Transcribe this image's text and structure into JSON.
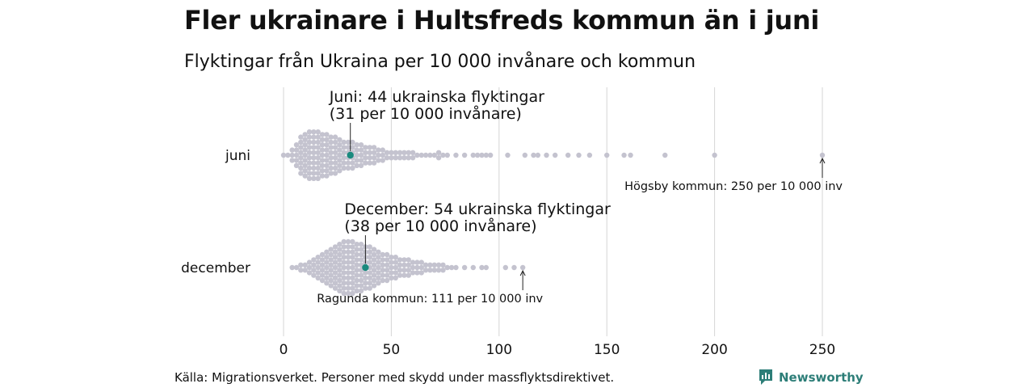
{
  "header": {
    "title": "Fler ukrainare i Hultsfreds kommun än i juni",
    "subtitle": "Flyktingar från Ukraina per 10 000 invånare och kommun"
  },
  "footer": {
    "source": "Källa: Migrationsverket. Personer med skydd under massflyktsdirektivet.",
    "brand": "Newsworthy"
  },
  "colors": {
    "dot": "#c4c3cf",
    "highlight": "#1a8a7e",
    "grid": "#d6d6d6",
    "text": "#111111"
  },
  "chart_data": {
    "type": "scatter",
    "subtype": "beeswarm",
    "xlim": [
      0,
      250
    ],
    "xticks": [
      0,
      50,
      100,
      150,
      200,
      250
    ],
    "xlabel": "",
    "ylabel": "",
    "grid": true,
    "rows": [
      {
        "label": "juni",
        "highlight": {
          "value": 31,
          "line1": "Juni: 44 ukrainska flyktingar",
          "line2": "(31 per 10 000 invånare)"
        },
        "outlier": {
          "value": 250,
          "label": "Högsby kommun: 250 per 10 000 inv"
        },
        "bins": [
          [
            0,
            1
          ],
          [
            2,
            1
          ],
          [
            4,
            3
          ],
          [
            6,
            5
          ],
          [
            8,
            8
          ],
          [
            10,
            9
          ],
          [
            12,
            10
          ],
          [
            14,
            10
          ],
          [
            16,
            10
          ],
          [
            18,
            9
          ],
          [
            20,
            9
          ],
          [
            22,
            8
          ],
          [
            24,
            8
          ],
          [
            26,
            7
          ],
          [
            28,
            6
          ],
          [
            30,
            6
          ],
          [
            32,
            6
          ],
          [
            34,
            5
          ],
          [
            36,
            5
          ],
          [
            38,
            4
          ],
          [
            40,
            4
          ],
          [
            42,
            4
          ],
          [
            44,
            3
          ],
          [
            46,
            3
          ],
          [
            48,
            2
          ],
          [
            50,
            2
          ],
          [
            52,
            2
          ],
          [
            54,
            2
          ],
          [
            56,
            2
          ],
          [
            58,
            2
          ],
          [
            60,
            2
          ],
          [
            62,
            1
          ],
          [
            64,
            1
          ],
          [
            66,
            1
          ],
          [
            68,
            1
          ],
          [
            70,
            1
          ],
          [
            72,
            2
          ],
          [
            74,
            1
          ],
          [
            76,
            1
          ],
          [
            80,
            1
          ],
          [
            84,
            1
          ],
          [
            88,
            1
          ],
          [
            90,
            1
          ],
          [
            92,
            1
          ],
          [
            94,
            1
          ],
          [
            96,
            1
          ],
          [
            104,
            1
          ],
          [
            112,
            1
          ],
          [
            116,
            1
          ],
          [
            118,
            1
          ],
          [
            122,
            1
          ],
          [
            126,
            1
          ],
          [
            132,
            1
          ],
          [
            137,
            1
          ],
          [
            142,
            1
          ],
          [
            150,
            1
          ],
          [
            158,
            1
          ],
          [
            161,
            1
          ],
          [
            177,
            1
          ],
          [
            200,
            1
          ],
          [
            250,
            1
          ]
        ]
      },
      {
        "label": "december",
        "highlight": {
          "value": 38,
          "line1": "December: 54 ukrainska flyktingar",
          "line2": "(38 per 10 000 invånare)"
        },
        "outlier": {
          "value": 111,
          "label": "Ragunda kommun: 111 per 10 000 inv"
        },
        "bins": [
          [
            4,
            1
          ],
          [
            6,
            1
          ],
          [
            8,
            2
          ],
          [
            10,
            2
          ],
          [
            12,
            3
          ],
          [
            14,
            4
          ],
          [
            16,
            5
          ],
          [
            18,
            6
          ],
          [
            20,
            7
          ],
          [
            22,
            8
          ],
          [
            24,
            9
          ],
          [
            26,
            10
          ],
          [
            28,
            11
          ],
          [
            30,
            11
          ],
          [
            32,
            11
          ],
          [
            34,
            10
          ],
          [
            36,
            10
          ],
          [
            38,
            9
          ],
          [
            40,
            9
          ],
          [
            42,
            8
          ],
          [
            44,
            7
          ],
          [
            46,
            6
          ],
          [
            48,
            6
          ],
          [
            50,
            5
          ],
          [
            52,
            5
          ],
          [
            54,
            4
          ],
          [
            56,
            4
          ],
          [
            58,
            4
          ],
          [
            60,
            3
          ],
          [
            62,
            3
          ],
          [
            64,
            3
          ],
          [
            66,
            2
          ],
          [
            68,
            2
          ],
          [
            70,
            2
          ],
          [
            72,
            2
          ],
          [
            74,
            2
          ],
          [
            76,
            1
          ],
          [
            78,
            1
          ],
          [
            80,
            1
          ],
          [
            84,
            1
          ],
          [
            88,
            1
          ],
          [
            92,
            1
          ],
          [
            94,
            1
          ],
          [
            103,
            1
          ],
          [
            107,
            1
          ],
          [
            111,
            1
          ]
        ]
      }
    ]
  }
}
